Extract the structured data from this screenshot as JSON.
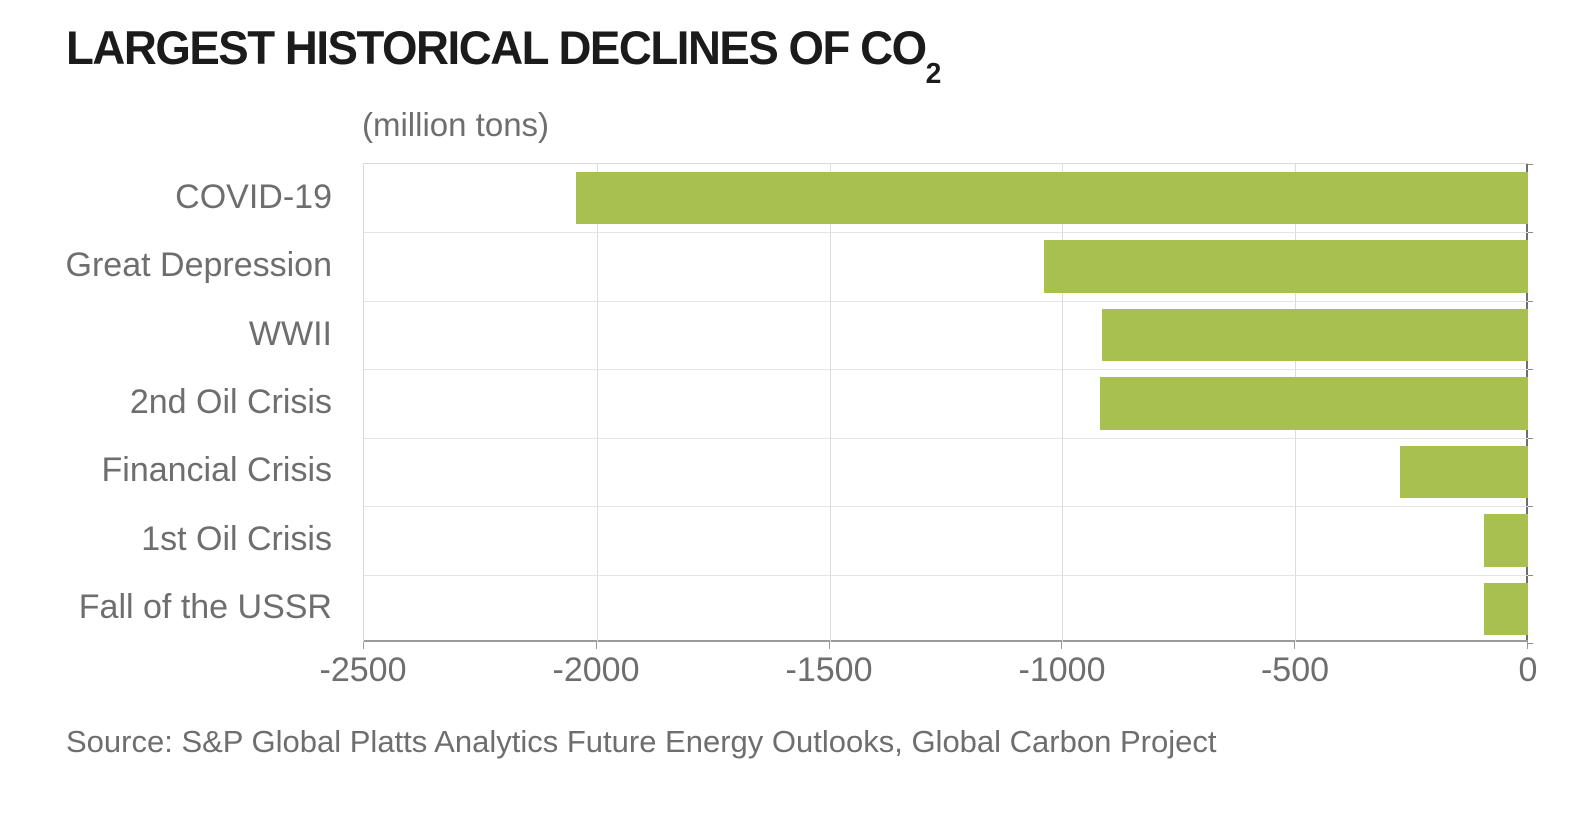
{
  "header": {
    "title_prefix": "LARGEST HISTORICAL DECLINES OF CO",
    "title_subscript": "2",
    "units_label": "(million tons)"
  },
  "chart_data": {
    "type": "bar",
    "orientation": "horizontal",
    "title": "LARGEST HISTORICAL DECLINES OF CO2",
    "xlabel": "(million tons)",
    "ylabel": "",
    "categories": [
      "COVID-19",
      "Great Depression",
      "WWII",
      "2nd Oil Crisis",
      "Financial Crisis",
      "1st Oil Crisis",
      "Fall of the USSR"
    ],
    "values": [
      -2045,
      -1040,
      -915,
      -920,
      -275,
      -95,
      -95
    ],
    "xlim": [
      -2500,
      0
    ],
    "xticks": [
      -2500,
      -2000,
      -1500,
      -1000,
      -500,
      0
    ],
    "xtick_labels": [
      "-2500",
      "-2000",
      "-1500",
      "-1000",
      "-500",
      "0"
    ],
    "grid": true,
    "legend": "none",
    "bar_anchor": "right"
  },
  "footer": {
    "source": "Source: S&P Global Platts Analytics Future Energy Outlooks, Global Carbon Project"
  },
  "colors": {
    "bar": "#a8c04f",
    "title_text": "#1b1b1b",
    "muted_text": "#6e6e6e",
    "gridline": "#dcdcdc",
    "axis": "#9a9a9a",
    "background": "#ffffff"
  }
}
